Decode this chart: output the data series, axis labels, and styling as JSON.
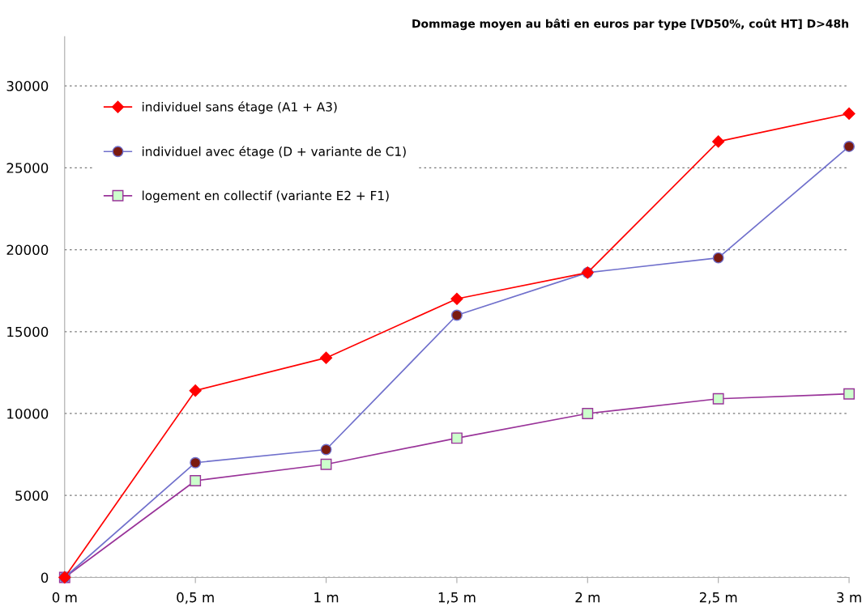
{
  "chart_data": {
    "type": "line",
    "title": "Dommage moyen au bâti en euros par type [VD50%, coût HT] D>48h",
    "categories": [
      "0 m",
      "0,5 m",
      "1 m",
      "1,5 m",
      "2 m",
      "2,5 m",
      "3 m"
    ],
    "series": [
      {
        "name": "individuel sans étage (A1 + A3)",
        "color": "#ff0000",
        "marker": "diamond",
        "values": [
          0,
          11400,
          13400,
          17000,
          18600,
          26600,
          28300
        ]
      },
      {
        "name": "individuel avec étage (D + variante de C1)",
        "color": "#7070cc",
        "marker": "circle",
        "values": [
          0,
          7000,
          7800,
          16000,
          18600,
          19500,
          26300
        ]
      },
      {
        "name": "logement en collectif (variante E2 + F1)",
        "color": "#993399",
        "marker": "square",
        "values": [
          0,
          5900,
          6900,
          8500,
          10000,
          10900,
          11200
        ]
      }
    ],
    "ylim": [
      0,
      33000
    ],
    "yticks": [
      0,
      5000,
      10000,
      15000,
      20000,
      25000,
      30000
    ],
    "grid": "y",
    "legend": "top left",
    "line_style": "solid"
  }
}
